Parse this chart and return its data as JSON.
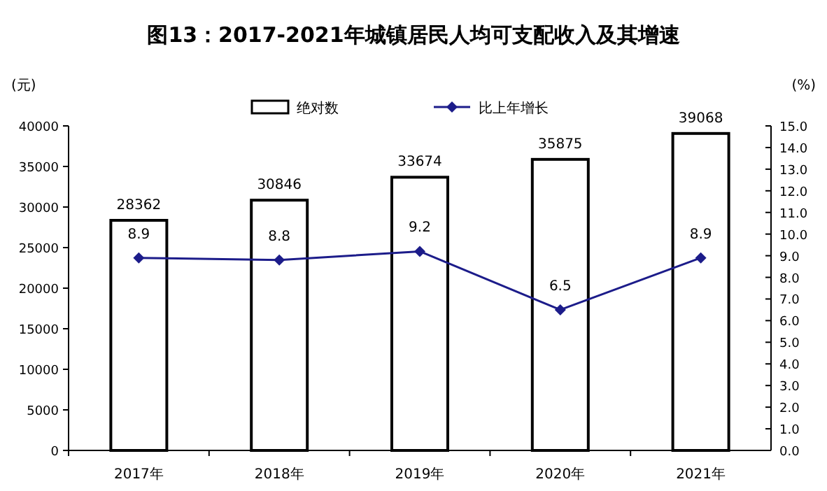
{
  "chart_data": {
    "type": "bar",
    "title": "图13：2017-2021年城镇居民人均可支配收入及其增速",
    "ylabel": "(元)",
    "y2label": "(%)",
    "categories": [
      "2017年",
      "2018年",
      "2019年",
      "2020年",
      "2021年"
    ],
    "series": [
      {
        "name": "绝对数",
        "color": "#ffffff",
        "values": [
          28362,
          30846,
          33674,
          35875,
          39068
        ]
      },
      {
        "name": "比上年增长",
        "type": "line",
        "axis": "y2",
        "color": "#1c1c8a",
        "marker": "diamond",
        "line_style": "solid",
        "values": [
          8.9,
          8.8,
          9.2,
          6.5,
          8.9
        ]
      }
    ],
    "ylim": [
      0,
      40000
    ],
    "yticks": [
      0,
      5000,
      10000,
      15000,
      20000,
      25000,
      30000,
      35000,
      40000
    ],
    "y2lim": [
      0,
      15
    ],
    "y2ticks": [
      {
        "value": 0,
        "label": "0.0"
      },
      {
        "value": 1,
        "label": "1.0"
      },
      {
        "value": 2,
        "label": "2.0"
      },
      {
        "value": 3,
        "label": "3.0"
      },
      {
        "value": 4,
        "label": "4.0"
      },
      {
        "value": 5,
        "label": "5.0"
      },
      {
        "value": 6,
        "label": "6.0"
      },
      {
        "value": 7,
        "label": "7.0"
      },
      {
        "value": 8,
        "label": "8.0"
      },
      {
        "value": 9,
        "label": "9.0"
      },
      {
        "value": 10,
        "label": "10.0"
      },
      {
        "value": 11,
        "label": "11.0"
      },
      {
        "value": 12,
        "label": "12.0"
      },
      {
        "value": 13,
        "label": "13.0"
      },
      {
        "value": 14,
        "label": "14.0"
      },
      {
        "value": 15,
        "label": "15.0"
      }
    ],
    "data_labels": true,
    "legend": "top",
    "grid": false
  }
}
